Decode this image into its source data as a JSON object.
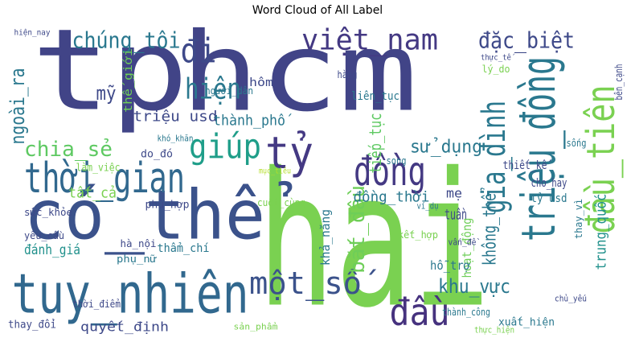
{
  "chart_data": {
    "type": "wordcloud",
    "title": "Word Cloud of All Label",
    "words": [
      "tp",
      "hcm",
      "hai",
      "có_thể",
      "tuy_nhiên",
      "thời_gian",
      "tỷ",
      "đồng",
      "triệu_đồng",
      "đầu_tiên",
      "việt_nam",
      "đặc_biệt",
      "chúng_tôi",
      "đi",
      "hiện",
      "giúp",
      "mỹ",
      "ngoài_ra",
      "chia_sẻ",
      "đầu",
      "một_số",
      "gia_đình",
      "bắt_đầu",
      "khu_vực",
      "không_thể",
      "trung_quốc",
      "sử_dụng",
      "triệu usd",
      "thành_phố",
      "tiếp_tục",
      "đồng_thời",
      "tất_cả",
      "đánh_giá",
      "quyết_định",
      "thế_giới",
      "tuần",
      "mẹ",
      "hoạt_động",
      "hỗ_trợ",
      "thay_đổi",
      "khả_năng",
      "thiết_kế",
      "cho_hay",
      "tỷ usd",
      "liên_tục",
      "hôm",
      "người_dân",
      "làm_việc",
      "do_đó",
      "phù_hợp",
      "sức_khỏe",
      "yêu_cầu",
      "hà_nội",
      "phụ_nữ",
      "thẩm_chí",
      "thời_điểm",
      "xuất_hiện",
      "thực_hiện",
      "thành_công",
      "kết_hợp",
      "lý_do",
      "thực_tế",
      "song",
      "hàng",
      "thay_vì",
      "sống",
      "bên_cạnh",
      "cuối_cùng",
      "vấn_đề",
      "khó_khăn",
      "sản_phẩm",
      "chủ_yếu",
      "hiện_nay",
      "ví_dụ",
      "mục_tiêu"
    ]
  }
}
